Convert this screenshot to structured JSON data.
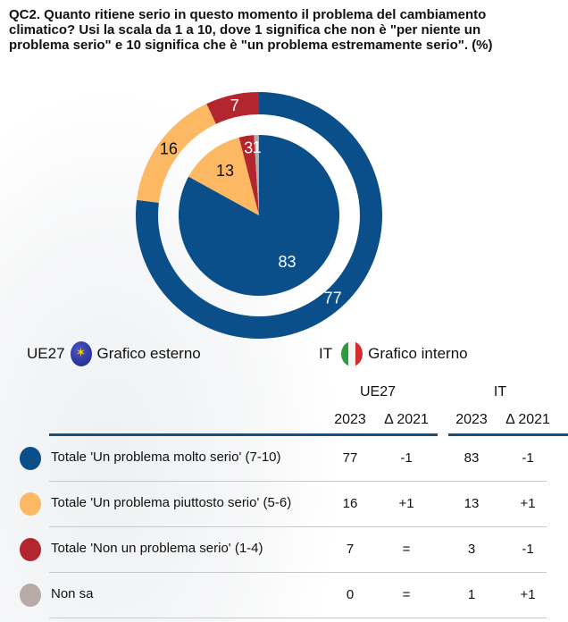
{
  "title": "QC2. Quanto ritiene serio in questo momento il problema del cambiamento climatico? Usi la scala da 1 a 10, dove 1 significa che non è \"per niente un problema serio\" e 10 significa che è \"un problema estremamente serio\". (%)",
  "legend": {
    "outer_code": "UE27",
    "outer_label": "Grafico esterno",
    "inner_code": "IT",
    "inner_label": "Grafico interno"
  },
  "table": {
    "groups": [
      "UE27",
      "IT"
    ],
    "columns": [
      "2023",
      "Δ 2021",
      "2023",
      "Δ 2021"
    ],
    "rows": [
      {
        "label": "Totale 'Un problema molto serio' (7-10)",
        "values": [
          "77",
          "-1",
          "83",
          "-1"
        ],
        "color": "#0b4f8a"
      },
      {
        "label": "Totale 'Un problema piuttosto serio' (5-6)",
        "values": [
          "16",
          "+1",
          "13",
          "+1"
        ],
        "color": "#fdb863"
      },
      {
        "label": "Totale 'Non un problema serio' (1-4)",
        "values": [
          "7",
          "=",
          "3",
          "-1"
        ],
        "color": "#b3252f"
      },
      {
        "label": "Non sa",
        "values": [
          "0",
          "=",
          "1",
          "+1"
        ],
        "color": "#b7aca8"
      }
    ]
  },
  "chart_data": {
    "type": "pie",
    "title": "QC2",
    "categories": [
      "Totale 'Un problema molto serio' (7-10)",
      "Totale 'Un problema piuttosto serio' (5-6)",
      "Totale 'Non un problema serio' (1-4)",
      "Non sa"
    ],
    "colors": [
      "#0b4f8a",
      "#fdb863",
      "#b3252f",
      "#b7aca8"
    ],
    "series": [
      {
        "name": "UE27",
        "ring": "outer",
        "values": [
          77,
          16,
          7,
          0
        ],
        "labels": [
          "77",
          "16",
          "7",
          ""
        ]
      },
      {
        "name": "IT",
        "ring": "inner",
        "values": [
          83,
          13,
          3,
          1
        ],
        "labels": [
          "83",
          "13",
          "3",
          "1"
        ]
      }
    ]
  }
}
